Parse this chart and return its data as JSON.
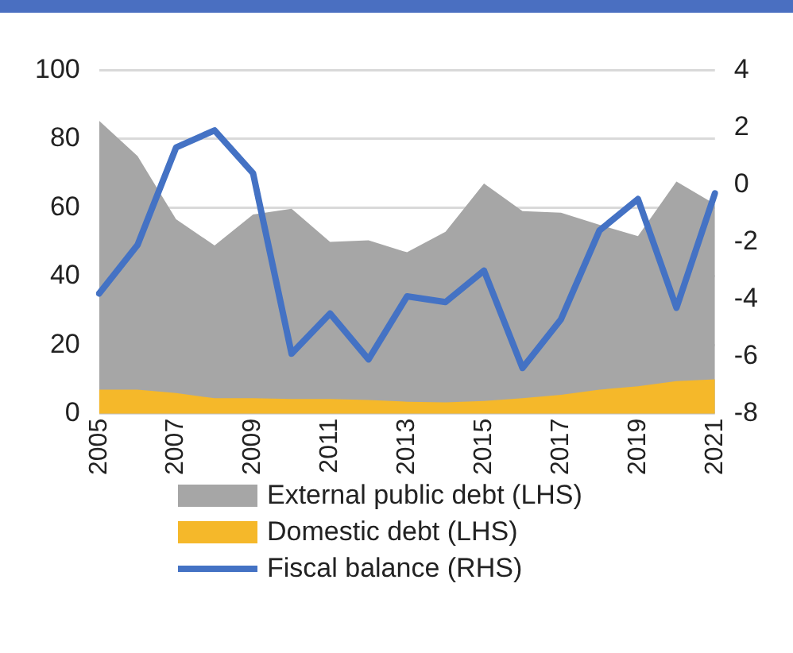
{
  "chart_data": {
    "type": "area",
    "categories": [
      "2005",
      null,
      "2007",
      null,
      "2009",
      null,
      "2011",
      null,
      "2013",
      null,
      "2015",
      null,
      "2017",
      null,
      "2019",
      null,
      "2021"
    ],
    "series": [
      {
        "name": "External public debt (LHS)",
        "color": "#a6a6a6",
        "values": [
          85.3,
          75,
          56.6,
          49,
          58,
          59.7,
          50,
          50.5,
          47,
          53,
          67,
          59,
          58.5,
          55,
          51.7,
          67.6,
          61
        ]
      },
      {
        "name": "Domestic debt (LHS)",
        "color": "#f5b82a",
        "values": [
          7,
          7,
          6,
          4.5,
          4.5,
          4.3,
          4.3,
          4,
          3.5,
          3.3,
          3.7,
          4.5,
          5.5,
          7,
          8,
          9.5,
          10
        ]
      },
      {
        "name": "Fiscal balance (RHS)",
        "type": "line",
        "axis": "y2",
        "color": "#4472c4",
        "values": [
          -3.8,
          -2.1,
          1.3,
          1.9,
          0.4,
          -5.9,
          -4.5,
          -6.1,
          -3.9,
          -4.1,
          -3.0,
          -6.4,
          -4.7,
          -1.6,
          -0.5,
          -4.3,
          -0.3
        ]
      }
    ],
    "ylim": [
      0,
      100
    ],
    "yticks": [
      0,
      20,
      40,
      60,
      80,
      100
    ],
    "y2lim": [
      -8,
      4
    ],
    "y2ticks": [
      -8,
      -6,
      -4,
      -2,
      0,
      2,
      4
    ],
    "grid": "y",
    "legend": "bottom",
    "marker": "none"
  }
}
